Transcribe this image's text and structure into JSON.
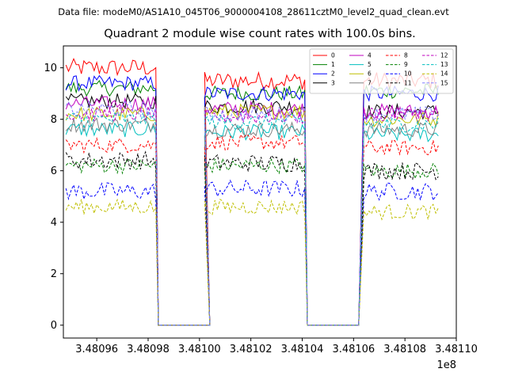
{
  "suptitle": "Data file: modeM0/AS1A10_045T06_9000004108_28611cztM0_level2_quad_clean.evt",
  "chart_data": {
    "type": "line",
    "title": "Quadrant 2 module wise count rates with 100.0s bins.",
    "xlabel": "",
    "ylabel": "",
    "x_offset_text": "1e8",
    "xlim": [
      3.480947,
      3.4811
    ],
    "ylim": [
      -0.5,
      10.85
    ],
    "x_ticks": [
      3.48096,
      3.48098,
      3.481,
      3.48102,
      3.48104,
      3.48106,
      3.48108,
      3.4811
    ],
    "x_tick_labels": [
      "3.48096",
      "3.48098",
      "3.48100",
      "3.48102",
      "3.48104",
      "3.48106",
      "3.48108",
      "3.48110"
    ],
    "y_ticks": [
      0,
      2,
      4,
      6,
      8,
      10
    ],
    "y_tick_labels": [
      "0",
      "2",
      "4",
      "6",
      "8",
      "10"
    ],
    "grid": false,
    "legend_position": "top-right",
    "segments_x": [
      [
        3.480948,
        3.480983
      ],
      [
        3.481002,
        3.481041
      ],
      [
        3.481064,
        3.481093
      ]
    ],
    "zero_x": [
      3.480984,
      3.481004,
      3.481042,
      3.481062
    ],
    "series": [
      {
        "name": "0",
        "color": "#ff0000",
        "dash": "solid",
        "level": [
          10.0,
          9.5,
          9.5
        ],
        "amp": 0.35
      },
      {
        "name": "1",
        "color": "#008000",
        "dash": "solid",
        "level": [
          9.2,
          9.0,
          9.1
        ],
        "amp": 0.3
      },
      {
        "name": "2",
        "color": "#0000ff",
        "dash": "solid",
        "level": [
          9.4,
          9.0,
          9.0
        ],
        "amp": 0.3
      },
      {
        "name": "3",
        "color": "#000000",
        "dash": "solid",
        "level": [
          8.7,
          8.5,
          8.3
        ],
        "amp": 0.3
      },
      {
        "name": "4",
        "color": "#bf00bf",
        "dash": "solid",
        "level": [
          8.6,
          8.4,
          8.3
        ],
        "amp": 0.3
      },
      {
        "name": "5",
        "color": "#00bfbf",
        "dash": "solid",
        "level": [
          7.6,
          7.5,
          7.4
        ],
        "amp": 0.3
      },
      {
        "name": "6",
        "color": "#bfbf00",
        "dash": "solid",
        "level": [
          8.2,
          8.3,
          8.0
        ],
        "amp": 0.3
      },
      {
        "name": "7",
        "color": "#808080",
        "dash": "solid",
        "level": [
          7.8,
          7.6,
          7.6
        ],
        "amp": 0.3
      },
      {
        "name": "8",
        "color": "#ff0000",
        "dash": "dashed",
        "level": [
          7.0,
          7.1,
          6.9
        ],
        "amp": 0.3
      },
      {
        "name": "9",
        "color": "#008000",
        "dash": "dashed",
        "level": [
          6.2,
          6.2,
          6.0
        ],
        "amp": 0.3
      },
      {
        "name": "10",
        "color": "#0000ff",
        "dash": "dashed",
        "level": [
          5.2,
          5.3,
          5.2
        ],
        "amp": 0.35
      },
      {
        "name": "11",
        "color": "#000000",
        "dash": "dashed",
        "level": [
          6.4,
          6.3,
          6.0
        ],
        "amp": 0.35
      },
      {
        "name": "12",
        "color": "#bf00bf",
        "dash": "dashed",
        "level": [
          8.2,
          8.1,
          8.2
        ],
        "amp": 0.3
      },
      {
        "name": "13",
        "color": "#00bfbf",
        "dash": "dashed",
        "level": [
          8.0,
          7.9,
          7.8
        ],
        "amp": 0.3
      },
      {
        "name": "14",
        "color": "#bfbf00",
        "dash": "dashed",
        "level": [
          4.6,
          4.6,
          4.4
        ],
        "amp": 0.3
      },
      {
        "name": "15",
        "color": "#8080ff",
        "dash": "dashed",
        "level": [
          8.4,
          8.2,
          8.2
        ],
        "amp": 0.3
      }
    ]
  }
}
